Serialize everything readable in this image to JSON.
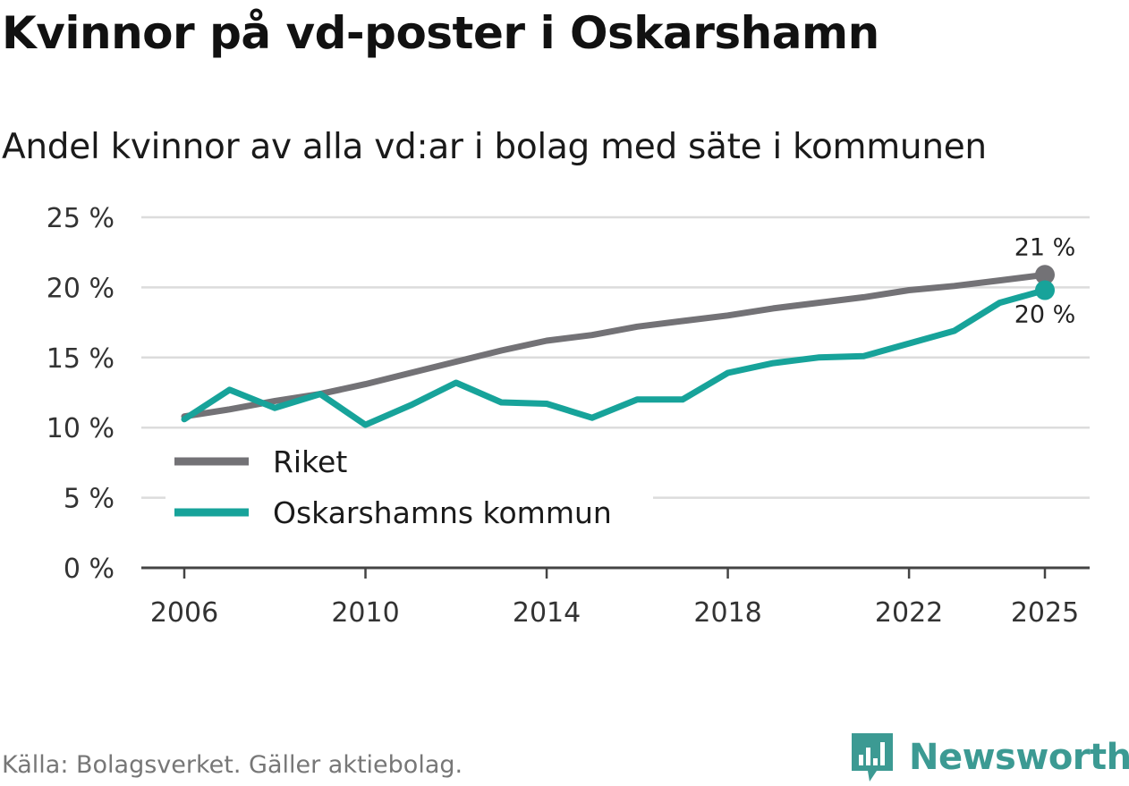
{
  "title": "Kvinnor på vd-poster i Oskarshamn",
  "subtitle": "Andel kvinnor av alla vd:ar i bolag med säte i kommunen",
  "source": "Källa: Bolagsverket. Gäller aktiebolag.",
  "brand": "Newsworthy",
  "colors": {
    "riket": "#737276",
    "oskarshamn": "#17a39a",
    "grid": "#dcdcdc",
    "axis": "#444444",
    "brand": "#3c9a93"
  },
  "chart_data": {
    "type": "line",
    "title": "Andel kvinnor av alla vd:ar i bolag med säte i kommunen",
    "xlabel": "",
    "ylabel": "",
    "xlim": [
      2005,
      2026
    ],
    "ylim": [
      0,
      25
    ],
    "x_ticks": [
      2006,
      2010,
      2014,
      2018,
      2022,
      2025
    ],
    "y_ticks": [
      0,
      5,
      10,
      15,
      20,
      25
    ],
    "y_tick_labels": [
      "0 %",
      "5 %",
      "10 %",
      "15 %",
      "20 %",
      "25 %"
    ],
    "grid": true,
    "legend_position": "bottom-left",
    "x": [
      2006,
      2007,
      2008,
      2009,
      2010,
      2011,
      2012,
      2013,
      2014,
      2015,
      2016,
      2017,
      2018,
      2019,
      2020,
      2021,
      2022,
      2023,
      2024,
      2025
    ],
    "series": [
      {
        "name": "Riket",
        "color_key": "riket",
        "end_label": "21 %",
        "values": [
          10.8,
          11.3,
          11.9,
          12.4,
          13.1,
          13.9,
          14.7,
          15.5,
          16.2,
          16.6,
          17.2,
          17.6,
          18.0,
          18.5,
          18.9,
          19.3,
          19.8,
          20.1,
          20.5,
          20.9
        ]
      },
      {
        "name": "Oskarshamns kommun",
        "color_key": "oskarshamn",
        "end_label": "20 %",
        "values": [
          10.6,
          12.7,
          11.4,
          12.4,
          10.2,
          11.6,
          13.2,
          11.8,
          11.7,
          10.7,
          12.0,
          12.0,
          13.9,
          14.6,
          15.0,
          15.1,
          16.0,
          16.9,
          18.9,
          19.8
        ]
      }
    ]
  }
}
